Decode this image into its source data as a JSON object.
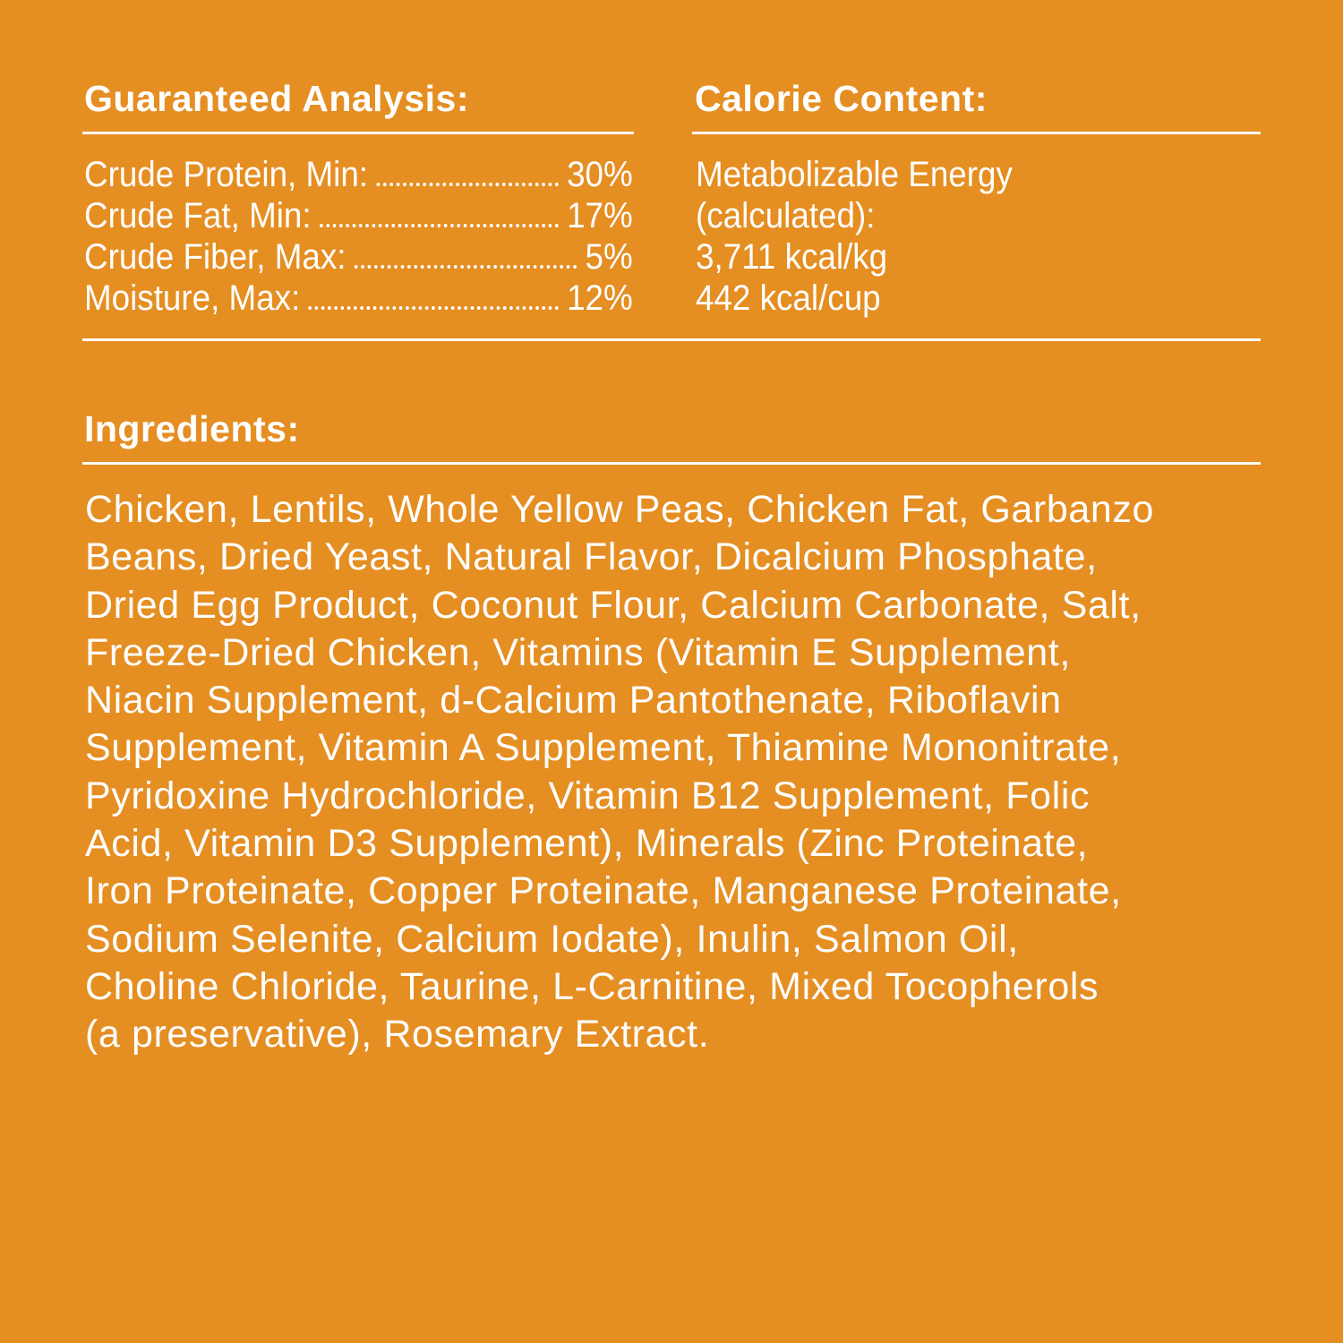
{
  "background_color": "#E58E22",
  "guaranteed_analysis": {
    "title": "Guaranteed Analysis:",
    "rows": [
      {
        "label": "Crude Protein, Min:",
        "value": "30%"
      },
      {
        "label": "Crude Fat, Min:",
        "value": "17%"
      },
      {
        "label": "Crude Fiber, Max:",
        "value": "5%"
      },
      {
        "label": "Moisture, Max:",
        "value": "12%"
      }
    ]
  },
  "calorie_content": {
    "title": "Calorie Content:",
    "lines": [
      "Metabolizable Energy",
      "(calculated):",
      "3,711 kcal/kg",
      "442 kcal/cup"
    ]
  },
  "ingredients": {
    "title": "Ingredients:",
    "lines": [
      "Chicken, Lentils, Whole Yellow Peas, Chicken Fat, Garbanzo",
      "Beans, Dried Yeast, Natural Flavor, Dicalcium Phosphate,",
      "Dried Egg Product, Coconut Flour, Calcium Carbonate, Salt,",
      "Freeze-Dried Chicken, Vitamins (Vitamin E Supplement,",
      "Niacin Supplement, d-Calcium Pantothenate, Riboflavin",
      "Supplement, Vitamin A Supplement, Thiamine Mononitrate,",
      "Pyridoxine Hydrochloride, Vitamin B12 Supplement, Folic",
      "Acid, Vitamin D3 Supplement), Minerals (Zinc Proteinate,",
      "Iron Proteinate, Copper Proteinate, Manganese Proteinate,",
      "Sodium Selenite, Calcium Iodate), Inulin, Salmon Oil,",
      "Choline Chloride, Taurine, L-Carnitine, Mixed Tocopherols",
      "(a preservative), Rosemary Extract."
    ]
  }
}
